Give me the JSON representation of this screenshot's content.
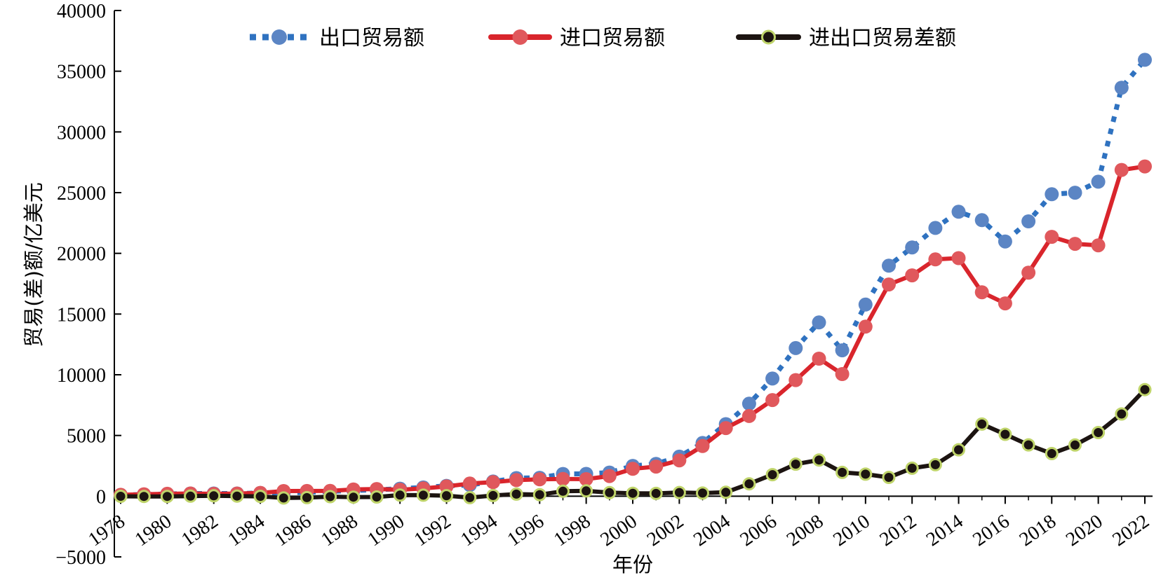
{
  "chart_data": {
    "type": "line",
    "xlabel": "年份",
    "ylabel": "贸易(差)额/亿美元",
    "ylim": [
      -5000,
      40000
    ],
    "yticks": [
      -5000,
      0,
      5000,
      10000,
      15000,
      20000,
      25000,
      30000,
      35000,
      40000
    ],
    "ytick_labels": [
      "−5000",
      "0",
      "5000",
      "10000",
      "15000",
      "20000",
      "25000",
      "30000",
      "35000",
      "40000"
    ],
    "xlim": [
      1978,
      2022
    ],
    "xticks": [
      1978,
      1980,
      1982,
      1984,
      1986,
      1988,
      1990,
      1992,
      1994,
      1996,
      1998,
      2000,
      2002,
      2004,
      2006,
      2008,
      2010,
      2012,
      2014,
      2016,
      2018,
      2020,
      2022
    ],
    "xtick_labels": [
      "1978",
      "1980",
      "1982",
      "1984",
      "1986",
      "1988",
      "1990",
      "1992",
      "1994",
      "1996",
      "1998",
      "2000",
      "2002",
      "2004",
      "2006",
      "2008",
      "2010",
      "2012",
      "2014",
      "2016",
      "2018",
      "2020",
      "2022"
    ],
    "x": [
      1978,
      1979,
      1980,
      1981,
      1982,
      1983,
      1984,
      1985,
      1986,
      1987,
      1988,
      1989,
      1990,
      1991,
      1992,
      1993,
      1994,
      1995,
      1996,
      1997,
      1998,
      1999,
      2000,
      2001,
      2002,
      2003,
      2004,
      2005,
      2006,
      2007,
      2008,
      2009,
      2010,
      2011,
      2012,
      2013,
      2014,
      2015,
      2016,
      2017,
      2018,
      2019,
      2020,
      2021,
      2022
    ],
    "legend_position": "top",
    "grid": false,
    "series": [
      {
        "name": "出口贸易额",
        "style": "dotted",
        "color": "#2f72c0",
        "marker_color": "#5b85c4",
        "values": [
          98,
          137,
          181,
          220,
          223,
          222,
          261,
          274,
          309,
          394,
          475,
          525,
          621,
          719,
          849,
          917,
          1210,
          1488,
          1511,
          1828,
          1837,
          1949,
          2492,
          2661,
          3256,
          4382,
          5933,
          7620,
          9689,
          12200,
          14307,
          12016,
          15778,
          18984,
          20487,
          22090,
          23423,
          22735,
          20976,
          22633,
          24867,
          24995,
          25900,
          33640,
          35936
        ]
      },
      {
        "name": "进口贸易额",
        "style": "solid",
        "color": "#d9252c",
        "marker_color": "#e0585c",
        "values": [
          109,
          157,
          200,
          220,
          193,
          214,
          274,
          423,
          429,
          432,
          553,
          591,
          534,
          638,
          806,
          1040,
          1156,
          1321,
          1388,
          1424,
          1402,
          1657,
          2251,
          2436,
          2952,
          4128,
          5612,
          6600,
          7916,
          9561,
          11326,
          10059,
          13962,
          17435,
          18184,
          19500,
          19603,
          16796,
          15879,
          18410,
          21357,
          20784,
          20660,
          26870,
          27160
        ]
      },
      {
        "name": "进出口贸易差额",
        "style": "solid",
        "color": "#1c1411",
        "marker_color": "#1c1411",
        "marker_edge": "#bfd46a",
        "values": [
          -11,
          -20,
          -19,
          0,
          30,
          8,
          -13,
          -149,
          -120,
          -38,
          -78,
          -66,
          87,
          81,
          43,
          -122,
          54,
          167,
          122,
          404,
          435,
          292,
          241,
          225,
          304,
          255,
          321,
          1020,
          1775,
          2639,
          2981,
          1957,
          1815,
          1549,
          2303,
          2590,
          3820,
          5939,
          5097,
          4223,
          3510,
          4211,
          5240,
          6770,
          8776
        ]
      }
    ]
  }
}
